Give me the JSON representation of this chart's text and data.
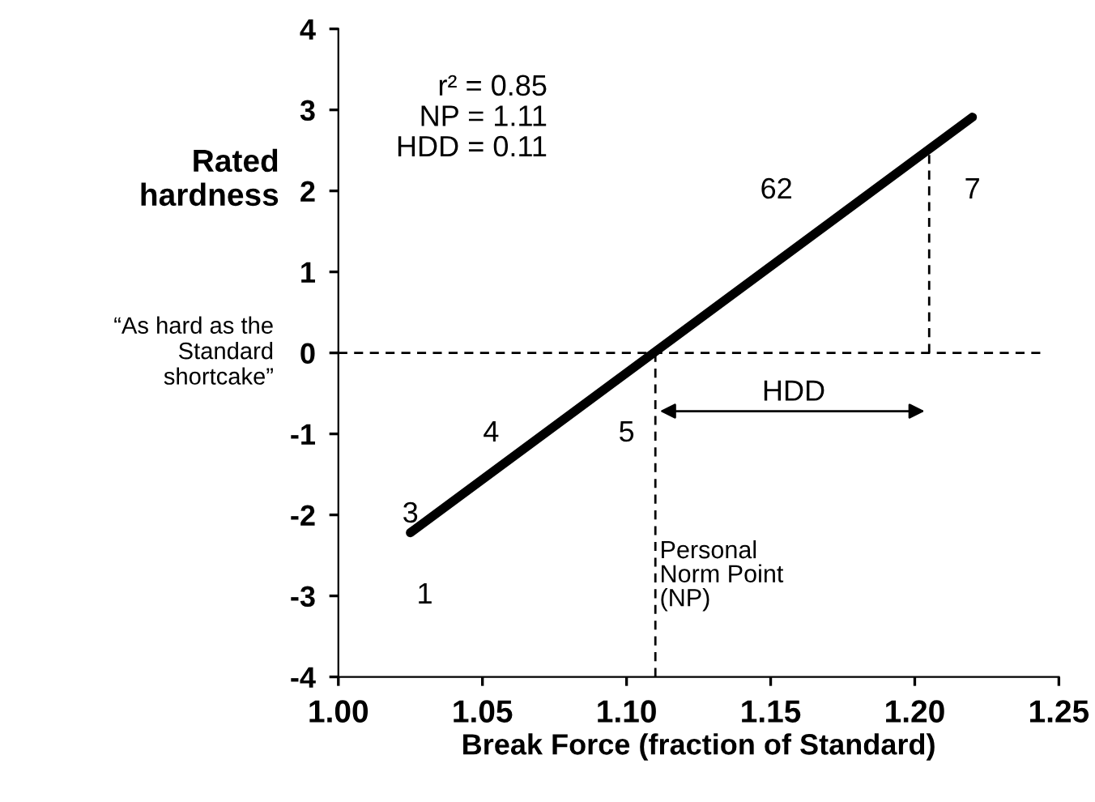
{
  "chart_data": {
    "type": "line",
    "xlabel": "Break Force (fraction of Standard)",
    "ylabel": "Rated\nhardness",
    "xlim": [
      1.0,
      1.25
    ],
    "xticks": [
      {
        "value": 1.0,
        "label": "1.00"
      },
      {
        "value": 1.05,
        "label": "1.05"
      },
      {
        "value": 1.1,
        "label": "1.10"
      },
      {
        "value": 1.15,
        "label": "1.15"
      },
      {
        "value": 1.2,
        "label": "1.20"
      },
      {
        "value": 1.25,
        "label": "1.25"
      }
    ],
    "ylim": [
      -4,
      4
    ],
    "yticks": [
      -4,
      -3,
      -2,
      -1,
      0,
      1,
      2,
      3,
      4
    ],
    "grid": false,
    "legend": false,
    "series": [
      {
        "color": "#000000",
        "x": [
          1.025,
          1.22
        ],
        "values": [
          -2.22,
          2.91
        ],
        "line_style": "solid"
      },
      {
        "color": "#000000",
        "x": [
          1.11,
          1.11
        ],
        "values": [
          0,
          -4
        ],
        "line_style": "dashed"
      },
      {
        "color": "#000000",
        "x": [
          1.205,
          1.205
        ],
        "values": [
          0,
          2.5
        ],
        "line_style": "dashed"
      },
      {
        "color": "#000000",
        "x": [
          1.0,
          1.245
        ],
        "values": [
          0,
          0
        ],
        "line_style": "dashed"
      }
    ],
    "annotations": [
      "r² = 0.85\nNP = 1.11\nHDD = 0.11",
      "“As hard as the\nStandard\nshortcake”",
      "HDD",
      "Personal\nNorm Point\n(NP)",
      "1",
      "3",
      "4",
      "5",
      "62",
      "7"
    ]
  }
}
